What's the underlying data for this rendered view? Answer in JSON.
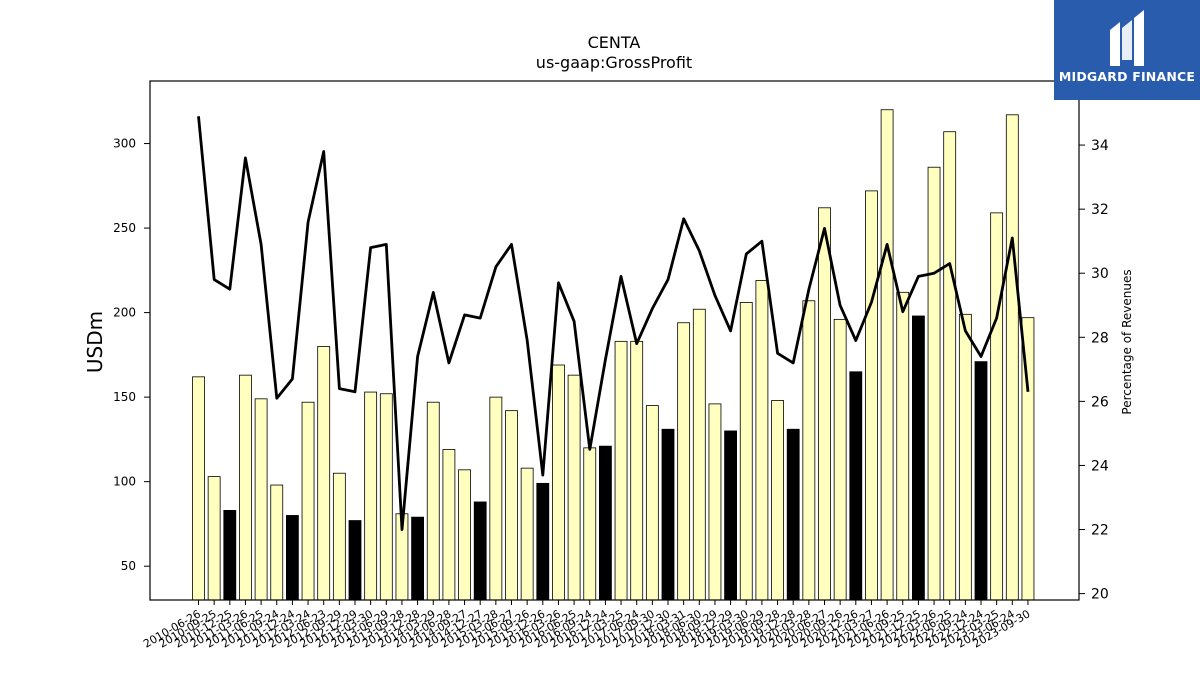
{
  "chart_data": {
    "type": "bar+line",
    "title": "CENTA",
    "subtitle": "us-gaap:GrossProfit",
    "ylabel": "USDm",
    "y2label": "Percentage of Revenues",
    "ylim": [
      30,
      337
    ],
    "y2lim": [
      19.8,
      36.0
    ],
    "yticks": [
      50,
      100,
      150,
      200,
      250,
      300
    ],
    "y2ticks": [
      20,
      22,
      24,
      26,
      28,
      30,
      32,
      34
    ],
    "colors": {
      "bar_normal": "#ffffc0",
      "bar_highlight": "#000000",
      "line": "#000000",
      "edge": "#000000"
    },
    "categories": [
      "2010-06-26",
      "2010-09-25",
      "2010-12-25",
      "2011-03-26",
      "2011-06-25",
      "2011-09-24",
      "2011-12-24",
      "2012-03-24",
      "2012-06-23",
      "2012-09-29",
      "2012-12-29",
      "2013-03-30",
      "2013-06-29",
      "2013-09-28",
      "2013-12-28",
      "2014-03-29",
      "2014-06-28",
      "2014-09-27",
      "2014-12-27",
      "2015-03-28",
      "2015-06-27",
      "2015-09-26",
      "2015-12-26",
      "2016-03-26",
      "2016-06-25",
      "2016-09-24",
      "2016-12-24",
      "2017-03-25",
      "2017-06-24",
      "2017-09-30",
      "2017-12-30",
      "2018-03-31",
      "2018-06-30",
      "2018-09-29",
      "2018-12-29",
      "2019-03-30",
      "2019-06-29",
      "2019-09-28",
      "2019-12-28",
      "2020-03-28",
      "2020-06-27",
      "2020-09-26",
      "2020-12-26",
      "2021-03-27",
      "2021-06-26",
      "2021-09-25",
      "2021-12-25",
      "2022-03-26",
      "2022-06-25",
      "2022-09-24",
      "2022-12-24",
      "2023-03-25",
      "2023-06-24",
      "2023-09-30"
    ],
    "xtick_labels": [
      "2010-06-26",
      "2010-09-25",
      "2010-12-25",
      "2011-03-26",
      "2011-06-25",
      "2011-09-24",
      "2011-12-24",
      "2012-03-24",
      "2012-06-23",
      "2012-09-29",
      "2012-12-29",
      "2013-03-30",
      "2013-06-29",
      "2013-09-28",
      "2013-12-28",
      "2014-03-29",
      "2014-06-28",
      "2014-09-27",
      "2014-12-27",
      "2015-03-28",
      "2015-06-27",
      "2015-09-26",
      "2015-12-26",
      "2016-03-26",
      "2016-06-25",
      "2016-09-24",
      "2016-12-24",
      "2017-03-25",
      "2017-06-24",
      "2017-09-30",
      "2017-12-30",
      "2018-03-31",
      "2018-06-30",
      "2018-09-29",
      "2018-12-29",
      "2019-03-30",
      "2019-06-29",
      "2019-09-28",
      "2019-12-28",
      "2020-03-28",
      "2020-06-27",
      "2020-09-26",
      "2020-12-26",
      "2021-03-27",
      "2021-06-26",
      "2021-09-25",
      "2021-12-25",
      "2022-03-26",
      "2022-06-25",
      "2022-09-24",
      "2022-12-24",
      "2023-03-25",
      "2023-06-24",
      "2023-09-30"
    ],
    "bars": [
      162,
      103,
      83,
      163,
      149,
      98,
      80,
      147,
      180,
      105,
      77,
      153,
      152,
      81,
      79,
      147,
      119,
      107,
      88,
      150,
      142,
      108,
      99,
      169,
      163,
      120,
      121,
      183,
      183,
      145,
      131,
      194,
      202,
      146,
      130,
      206,
      219,
      148,
      131,
      207,
      262,
      196,
      165,
      272,
      320,
      212,
      198,
      286,
      307,
      199,
      171,
      259,
      317,
      197
    ],
    "highlight": [
      false,
      false,
      true,
      false,
      false,
      false,
      true,
      false,
      false,
      false,
      true,
      false,
      false,
      false,
      true,
      false,
      false,
      false,
      true,
      false,
      false,
      false,
      true,
      false,
      false,
      false,
      true,
      false,
      false,
      false,
      true,
      false,
      false,
      false,
      true,
      false,
      false,
      false,
      true,
      false,
      false,
      false,
      true,
      false,
      false,
      false,
      true,
      false,
      false,
      false,
      true,
      false,
      false,
      false
    ],
    "line": [
      34.9,
      29.8,
      29.5,
      33.6,
      30.9,
      26.1,
      26.7,
      31.6,
      33.8,
      26.4,
      26.3,
      30.8,
      30.9,
      22.0,
      27.4,
      29.4,
      27.2,
      28.7,
      28.6,
      30.2,
      30.9,
      27.9,
      23.7,
      29.7,
      28.5,
      24.5,
      27.3,
      29.9,
      27.8,
      28.9,
      29.8,
      31.7,
      30.7,
      29.3,
      28.2,
      30.6,
      31.0,
      27.5,
      27.2,
      29.5,
      31.4,
      29.0,
      27.9,
      29.1,
      30.9,
      28.8,
      29.9,
      30.0,
      30.3,
      28.2,
      27.4,
      28.6,
      31.1,
      26.3
    ]
  },
  "logo": {
    "text": "MIDGARD FINANCE"
  }
}
